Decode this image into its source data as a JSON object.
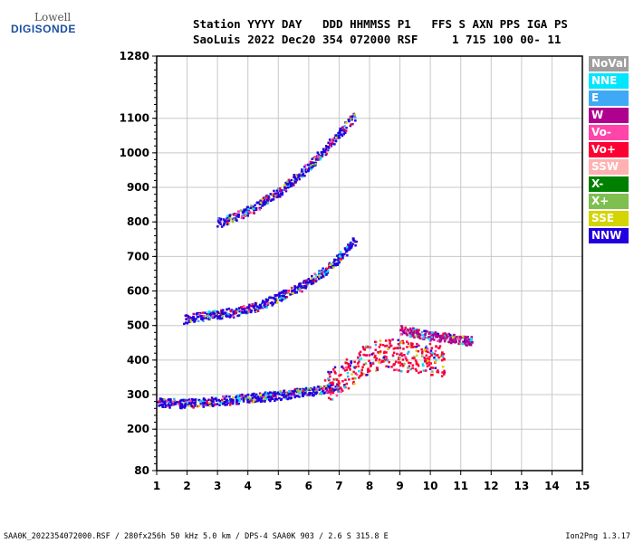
{
  "logo": {
    "top": "Lowell",
    "bottom": "DIGISONDE"
  },
  "header": {
    "line1": "Station YYYY DAY   DDD HHMMSS P1   FFS S AXN PPS IGA PS",
    "line2": "SaoLuis 2022 Dec20 354 072000 RSF     1 715 100 00- 11"
  },
  "legend": [
    {
      "label": "NoVal",
      "color": "#9e9e9e"
    },
    {
      "label": "NNE",
      "color": "#00e6ff"
    },
    {
      "label": "E",
      "color": "#3fa9f5"
    },
    {
      "label": "W",
      "color": "#b0008f"
    },
    {
      "label": "Vo-",
      "color": "#ff44aa"
    },
    {
      "label": "Vo+",
      "color": "#ff0033"
    },
    {
      "label": "SSW",
      "color": "#ffb0b0"
    },
    {
      "label": "X-",
      "color": "#008000"
    },
    {
      "label": "X+",
      "color": "#7fbf4f"
    },
    {
      "label": "SSE",
      "color": "#d4d400"
    },
    {
      "label": "NNW",
      "color": "#2200dd"
    }
  ],
  "footer": {
    "left": "SAA0K_2022354072000.RSF / 280fx256h 50 kHz 5.0 km / DPS-4 SAA0K 903 / 2.6 S 315.8 E",
    "right": "Ion2Png 1.3.17"
  },
  "chart_data": {
    "type": "scatter",
    "xlim": [
      1,
      15
    ],
    "ylim": [
      80,
      1280
    ],
    "x_ticks": [
      "1",
      "2",
      "3",
      "4",
      "5",
      "6",
      "7",
      "8",
      "9",
      "10",
      "11",
      "12",
      "13",
      "14",
      "15"
    ],
    "y_ticks": [
      "80",
      "200",
      "300",
      "400",
      "500",
      "600",
      "700",
      "800",
      "900",
      "1000",
      "1100",
      "1280"
    ],
    "grid": true,
    "traces": [
      {
        "color_ref": "NNW",
        "points": [
          [
            1.0,
            280
          ],
          [
            1.5,
            278
          ],
          [
            2.0,
            276
          ],
          [
            2.5,
            280
          ],
          [
            3.0,
            284
          ],
          [
            3.5,
            288
          ],
          [
            4.0,
            292
          ],
          [
            4.5,
            296
          ],
          [
            5.0,
            300
          ],
          [
            5.5,
            306
          ],
          [
            6.0,
            312
          ],
          [
            6.5,
            318
          ],
          [
            7.0,
            326
          ]
        ]
      },
      {
        "color_ref": "Vo+",
        "points": [
          [
            6.5,
            320
          ],
          [
            7.0,
            350
          ],
          [
            7.5,
            380
          ],
          [
            8.0,
            410
          ],
          [
            8.5,
            420
          ],
          [
            9.0,
            415
          ],
          [
            9.5,
            410
          ],
          [
            10.0,
            405
          ],
          [
            10.5,
            400
          ]
        ]
      },
      {
        "color_ref": "W",
        "points": [
          [
            9.0,
            490
          ],
          [
            9.5,
            480
          ],
          [
            10.0,
            472
          ],
          [
            10.5,
            468
          ],
          [
            11.0,
            460
          ],
          [
            11.3,
            458
          ]
        ]
      },
      {
        "color_ref": "NNW",
        "points": [
          [
            1.9,
            520
          ],
          [
            2.5,
            530
          ],
          [
            3.0,
            535
          ],
          [
            3.5,
            540
          ],
          [
            4.0,
            550
          ],
          [
            4.5,
            565
          ],
          [
            5.0,
            585
          ],
          [
            5.5,
            605
          ],
          [
            6.0,
            630
          ],
          [
            6.5,
            660
          ],
          [
            7.0,
            700
          ],
          [
            7.5,
            750
          ]
        ]
      },
      {
        "color_ref": "NNW",
        "points": [
          [
            3.0,
            800
          ],
          [
            3.5,
            815
          ],
          [
            4.0,
            835
          ],
          [
            4.5,
            860
          ],
          [
            5.0,
            890
          ],
          [
            5.5,
            925
          ],
          [
            6.0,
            965
          ],
          [
            6.5,
            1010
          ],
          [
            7.0,
            1060
          ],
          [
            7.5,
            1110
          ]
        ]
      }
    ]
  }
}
